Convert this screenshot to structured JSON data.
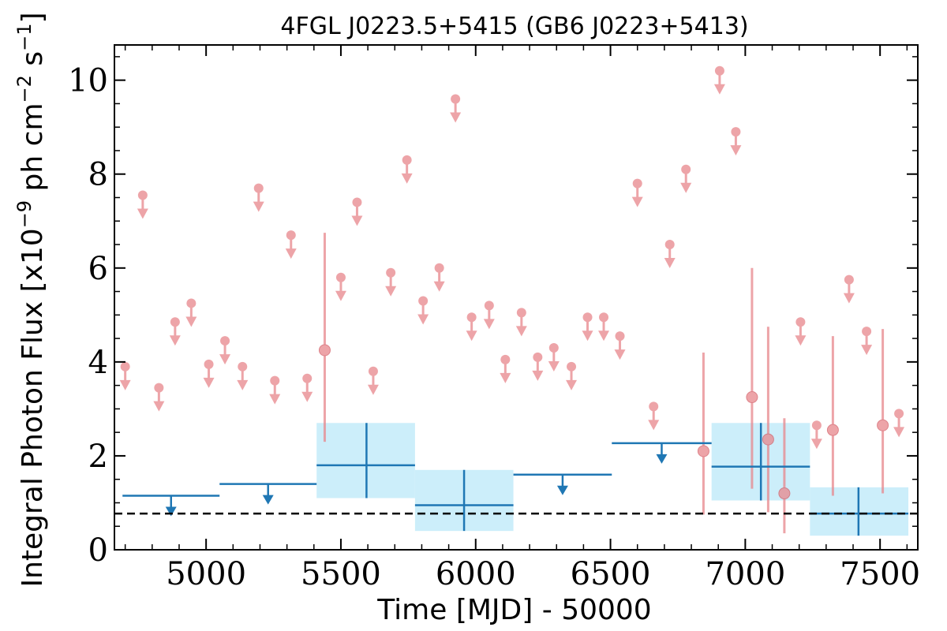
{
  "chart_data": {
    "type": "scatter",
    "title": "4FGL J0223.5+5415 (GB6 J0223+5413)",
    "xlabel": "Time [MJD] - 50000",
    "ylabel": "Integral Photon Flux [x10^-9 ph cm^-2 s^-1]",
    "ylabel_parts": {
      "prefix": "Integral Photon Flux [x10",
      "exp1": "−9",
      "mid": " ph cm",
      "exp2": "−2",
      "mid2": " s",
      "exp3": "−1",
      "suffix": "]"
    },
    "xlim": [
      4660,
      7640
    ],
    "ylim": [
      0,
      10.75
    ],
    "xticks": [
      5000,
      5500,
      6000,
      6500,
      7000,
      7500
    ],
    "xtick_labels": [
      "5000",
      "5500",
      "6000",
      "6500",
      "7000",
      "7500"
    ],
    "yticks": [
      0,
      2,
      4,
      6,
      8,
      10
    ],
    "ytick_labels": [
      "0",
      "2",
      "4",
      "6",
      "8",
      "10"
    ],
    "grid": false,
    "colors": {
      "short_bins": "#e8868c",
      "long_bins": "#1f77b4",
      "long_band": "#cceefa",
      "baseline": "#000000"
    },
    "short_bins_upper_limits": [
      {
        "x": 4700,
        "y": 3.9
      },
      {
        "x": 4765,
        "y": 7.55
      },
      {
        "x": 4825,
        "y": 3.45
      },
      {
        "x": 4885,
        "y": 4.85
      },
      {
        "x": 4945,
        "y": 5.25
      },
      {
        "x": 5010,
        "y": 3.95
      },
      {
        "x": 5070,
        "y": 4.45
      },
      {
        "x": 5135,
        "y": 3.9
      },
      {
        "x": 5195,
        "y": 7.7
      },
      {
        "x": 5255,
        "y": 3.6
      },
      {
        "x": 5315,
        "y": 6.7
      },
      {
        "x": 5375,
        "y": 3.65
      },
      {
        "x": 5500,
        "y": 5.8
      },
      {
        "x": 5560,
        "y": 7.4
      },
      {
        "x": 5620,
        "y": 3.8
      },
      {
        "x": 5685,
        "y": 5.9
      },
      {
        "x": 5745,
        "y": 8.3
      },
      {
        "x": 5805,
        "y": 5.3
      },
      {
        "x": 5865,
        "y": 6.0
      },
      {
        "x": 5925,
        "y": 9.6
      },
      {
        "x": 5985,
        "y": 4.95
      },
      {
        "x": 6050,
        "y": 5.2
      },
      {
        "x": 6110,
        "y": 4.05
      },
      {
        "x": 6170,
        "y": 5.05
      },
      {
        "x": 6230,
        "y": 4.1
      },
      {
        "x": 6290,
        "y": 4.3
      },
      {
        "x": 6355,
        "y": 3.9
      },
      {
        "x": 6415,
        "y": 4.95
      },
      {
        "x": 6475,
        "y": 4.95
      },
      {
        "x": 6535,
        "y": 4.55
      },
      {
        "x": 6600,
        "y": 7.8
      },
      {
        "x": 6660,
        "y": 3.05
      },
      {
        "x": 6720,
        "y": 6.5
      },
      {
        "x": 6780,
        "y": 8.1
      },
      {
        "x": 6905,
        "y": 10.2
      },
      {
        "x": 6965,
        "y": 8.9
      },
      {
        "x": 7205,
        "y": 4.85
      },
      {
        "x": 7265,
        "y": 2.65
      },
      {
        "x": 7385,
        "y": 5.75
      },
      {
        "x": 7450,
        "y": 4.65
      },
      {
        "x": 7570,
        "y": 2.9
      }
    ],
    "short_bins_detections": [
      {
        "x": 5440,
        "y": 4.25,
        "ylow": 2.3,
        "yhigh": 6.75
      },
      {
        "x": 6845,
        "y": 2.1,
        "ylow": 0.75,
        "yhigh": 4.2
      },
      {
        "x": 7025,
        "y": 3.25,
        "ylow": 1.3,
        "yhigh": 6.0
      },
      {
        "x": 7085,
        "y": 2.35,
        "ylow": 0.8,
        "yhigh": 4.75
      },
      {
        "x": 7145,
        "y": 1.2,
        "ylow": 0.35,
        "yhigh": 2.8
      },
      {
        "x": 7325,
        "y": 2.55,
        "ylow": 1.15,
        "yhigh": 4.55
      },
      {
        "x": 7510,
        "y": 2.65,
        "ylow": 1.2,
        "yhigh": 4.7
      }
    ],
    "long_bins_upper_limits": [
      {
        "x0": 4690,
        "x1": 5050,
        "y": 1.15
      },
      {
        "x0": 5050,
        "x1": 5410,
        "y": 1.4
      },
      {
        "x0": 6140,
        "x1": 6505,
        "y": 1.6
      },
      {
        "x0": 6505,
        "x1": 6875,
        "y": 2.27
      }
    ],
    "long_bins_detections": [
      {
        "x0": 5410,
        "x1": 5775,
        "xc": 5595,
        "y": 1.8,
        "ylow": 1.1,
        "yhigh": 2.7
      },
      {
        "x0": 5775,
        "x1": 6140,
        "xc": 5957,
        "y": 0.95,
        "ylow": 0.4,
        "yhigh": 1.7
      },
      {
        "x0": 6875,
        "x1": 7240,
        "xc": 7058,
        "y": 1.77,
        "ylow": 1.05,
        "yhigh": 2.7
      },
      {
        "x0": 7240,
        "x1": 7605,
        "xc": 7420,
        "y": 0.77,
        "ylow": 0.3,
        "yhigh": 1.33
      }
    ],
    "baseline_y": 0.77
  }
}
